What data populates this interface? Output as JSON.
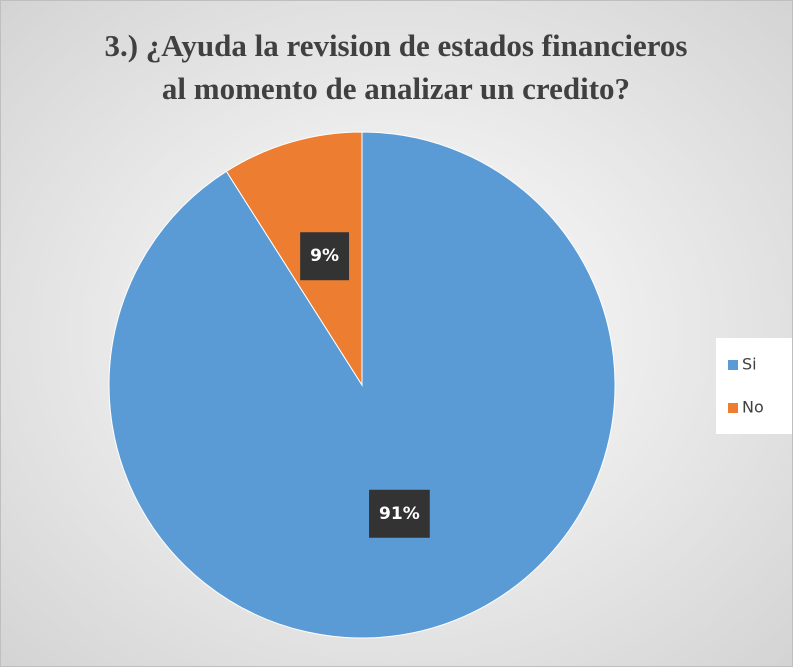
{
  "chart_data": {
    "type": "pie",
    "title": [
      "3.) ¿Ayuda la revision de estados financieros",
      "al momento de analizar un credito?"
    ],
    "categories": [
      "Si",
      "No"
    ],
    "values": [
      91,
      9
    ],
    "value_labels": [
      "91%",
      "9%"
    ],
    "colors": [
      "#5b9bd5",
      "#ed7d31"
    ],
    "legend": "right"
  }
}
